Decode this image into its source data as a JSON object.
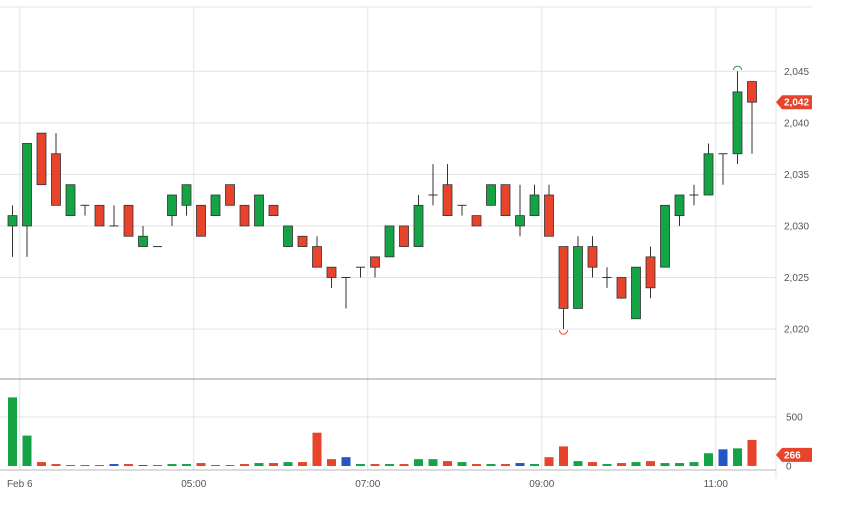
{
  "chart_data": {
    "type": "candlestick",
    "x_ticks": [
      "Feb 6",
      "05:00",
      "07:00",
      "09:00",
      "11:00"
    ],
    "price_ticks": [
      2020,
      2025,
      2030,
      2035,
      2040,
      2045
    ],
    "volume_ticks": [
      0,
      500
    ],
    "ylim_price": [
      2017,
      2049
    ],
    "ylim_volume": [
      0,
      900
    ],
    "current_price": {
      "label": "2,042",
      "value": 2042,
      "color": "#e8432b"
    },
    "current_volume": {
      "label": "266",
      "value": 266,
      "color": "#e8432b"
    },
    "high_marker": {
      "value": 2045.5
    },
    "low_marker": {
      "value": 2019.5
    },
    "colors": {
      "up": "#14a345",
      "down": "#e8432b",
      "neutral": "#2456c6",
      "grid": "#e4e4e4",
      "axis": "#b8b8b8"
    },
    "tick_index": [
      0.5,
      12.5,
      24.5,
      36.5,
      48.5
    ],
    "candles": [
      {
        "o": 2030,
        "h": 2032,
        "l": 2027,
        "c": 2031,
        "v": 700
      },
      {
        "o": 2030,
        "h": 2038,
        "l": 2027,
        "c": 2038,
        "v": 310
      },
      {
        "o": 2039,
        "h": 2039,
        "l": 2034,
        "c": 2034,
        "v": 40
      },
      {
        "o": 2037,
        "h": 2039,
        "l": 2032,
        "c": 2032,
        "v": 20
      },
      {
        "o": 2031,
        "h": 2034,
        "l": 2031,
        "c": 2034,
        "v": 10
      },
      {
        "o": 2032,
        "h": 2032,
        "l": 2031,
        "c": 2032,
        "v": 10
      },
      {
        "o": 2032,
        "h": 2032,
        "l": 2030,
        "c": 2030,
        "v": 10
      },
      {
        "o": 2030,
        "h": 2032,
        "l": 2030,
        "c": 2030,
        "v": 20,
        "vc": "neutral"
      },
      {
        "o": 2032,
        "h": 2032,
        "l": 2029,
        "c": 2029,
        "v": 20
      },
      {
        "o": 2028,
        "h": 2030,
        "l": 2028,
        "c": 2029,
        "v": 10,
        "vc": "neutral"
      },
      {
        "o": 2028,
        "h": 2028,
        "l": 2028,
        "c": 2028,
        "v": 10
      },
      {
        "o": 2031,
        "h": 2033,
        "l": 2030,
        "c": 2033,
        "v": 20
      },
      {
        "o": 2032,
        "h": 2034,
        "l": 2031,
        "c": 2034,
        "v": 20
      },
      {
        "o": 2032,
        "h": 2032,
        "l": 2029,
        "c": 2029,
        "v": 30
      },
      {
        "o": 2031,
        "h": 2033,
        "l": 2031,
        "c": 2033,
        "v": 10
      },
      {
        "o": 2034,
        "h": 2034,
        "l": 2032,
        "c": 2032,
        "v": 10
      },
      {
        "o": 2032,
        "h": 2032,
        "l": 2030,
        "c": 2030,
        "v": 20
      },
      {
        "o": 2030,
        "h": 2033,
        "l": 2030,
        "c": 2033,
        "v": 30
      },
      {
        "o": 2032,
        "h": 2032,
        "l": 2031,
        "c": 2031,
        "v": 30
      },
      {
        "o": 2028,
        "h": 2030,
        "l": 2028,
        "c": 2030,
        "v": 40
      },
      {
        "o": 2029,
        "h": 2029,
        "l": 2028,
        "c": 2028,
        "v": 40
      },
      {
        "o": 2028,
        "h": 2029,
        "l": 2026,
        "c": 2026,
        "v": 340
      },
      {
        "o": 2026,
        "h": 2026,
        "l": 2024,
        "c": 2025,
        "v": 70
      },
      {
        "o": 2025,
        "h": 2025,
        "l": 2022,
        "c": 2025,
        "v": 90,
        "vc": "neutral"
      },
      {
        "o": 2026,
        "h": 2026,
        "l": 2025,
        "c": 2026,
        "v": 20
      },
      {
        "o": 2027,
        "h": 2027,
        "l": 2025,
        "c": 2026,
        "v": 20
      },
      {
        "o": 2027,
        "h": 2030,
        "l": 2027,
        "c": 2030,
        "v": 20
      },
      {
        "o": 2030,
        "h": 2030,
        "l": 2028,
        "c": 2028,
        "v": 20
      },
      {
        "o": 2028,
        "h": 2033,
        "l": 2028,
        "c": 2032,
        "v": 70
      },
      {
        "o": 2033,
        "h": 2036,
        "l": 2032,
        "c": 2033,
        "v": 70
      },
      {
        "o": 2034,
        "h": 2036,
        "l": 2031,
        "c": 2031,
        "v": 50
      },
      {
        "o": 2032,
        "h": 2032,
        "l": 2031,
        "c": 2032,
        "v": 40
      },
      {
        "o": 2031,
        "h": 2031,
        "l": 2030,
        "c": 2030,
        "v": 20
      },
      {
        "o": 2032,
        "h": 2034,
        "l": 2032,
        "c": 2034,
        "v": 20
      },
      {
        "o": 2034,
        "h": 2034,
        "l": 2031,
        "c": 2031,
        "v": 20
      },
      {
        "o": 2030,
        "h": 2034,
        "l": 2029,
        "c": 2031,
        "v": 30,
        "vc": "neutral"
      },
      {
        "o": 2031,
        "h": 2034,
        "l": 2031,
        "c": 2033,
        "v": 20
      },
      {
        "o": 2033,
        "h": 2034,
        "l": 2029,
        "c": 2029,
        "v": 90
      },
      {
        "o": 2028,
        "h": 2028,
        "l": 2020,
        "c": 2022,
        "v": 200
      },
      {
        "o": 2022,
        "h": 2029,
        "l": 2022,
        "c": 2028,
        "v": 50
      },
      {
        "o": 2028,
        "h": 2029,
        "l": 2025,
        "c": 2026,
        "v": 40
      },
      {
        "o": 2025,
        "h": 2026,
        "l": 2024,
        "c": 2025,
        "v": 20
      },
      {
        "o": 2025,
        "h": 2025,
        "l": 2023,
        "c": 2023,
        "v": 30
      },
      {
        "o": 2021,
        "h": 2026,
        "l": 2021,
        "c": 2026,
        "v": 40
      },
      {
        "o": 2027,
        "h": 2028,
        "l": 2023,
        "c": 2024,
        "v": 50
      },
      {
        "o": 2026,
        "h": 2032,
        "l": 2026,
        "c": 2032,
        "v": 30
      },
      {
        "o": 2031,
        "h": 2033,
        "l": 2030,
        "c": 2033,
        "v": 30
      },
      {
        "o": 2033,
        "h": 2034,
        "l": 2032,
        "c": 2033,
        "v": 40
      },
      {
        "o": 2033,
        "h": 2038,
        "l": 2033,
        "c": 2037,
        "v": 130
      },
      {
        "o": 2037,
        "h": 2037,
        "l": 2034,
        "c": 2037,
        "v": 170,
        "vc": "neutral"
      },
      {
        "o": 2037,
        "h": 2045,
        "l": 2036,
        "c": 2043,
        "v": 180
      },
      {
        "o": 2044,
        "h": 2044,
        "l": 2037,
        "c": 2042,
        "v": 266
      }
    ]
  }
}
